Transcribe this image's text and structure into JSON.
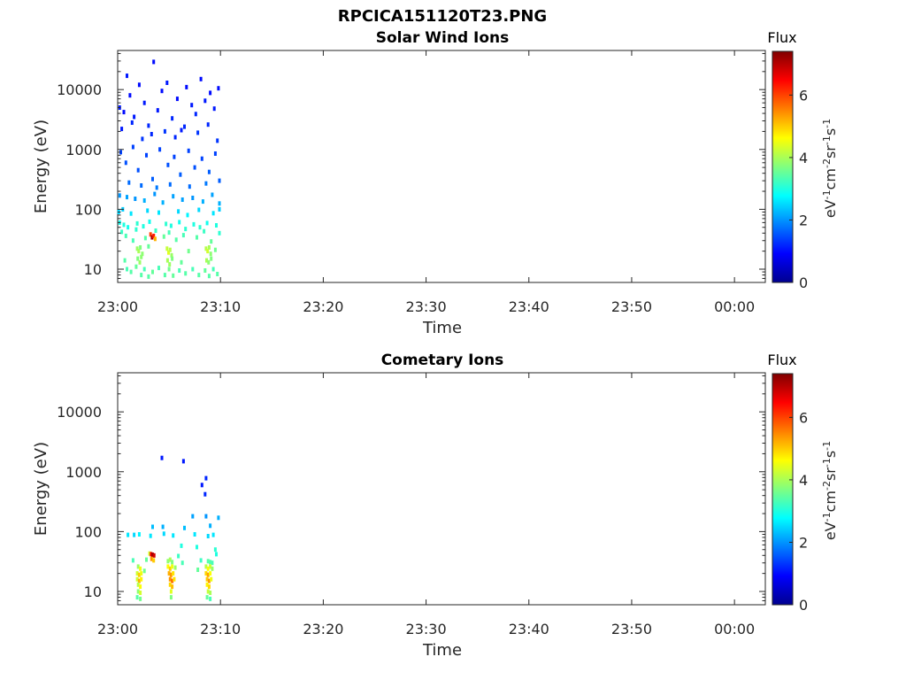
{
  "figure": {
    "title": "RPCICA151120T23.PNG"
  },
  "colormap": [
    "#00008f",
    "#0000ff",
    "#0080ff",
    "#00ffff",
    "#80ff80",
    "#ffff00",
    "#ff8000",
    "#ff0000",
    "#800000"
  ],
  "chart_data": [
    {
      "type": "heatmap",
      "title": "Solar Wind Ions",
      "xlabel": "Time",
      "ylabel": "Energy (eV)",
      "x_ticks": [
        "23:00",
        "23:10",
        "23:20",
        "23:30",
        "23:40",
        "23:50",
        "00:00"
      ],
      "x_range_minutes": [
        0,
        63
      ],
      "y_scale": "log",
      "y_ticks": [
        10,
        100,
        1000,
        10000
      ],
      "ylim": [
        6,
        45000
      ],
      "colorbar": {
        "label": "Flux",
        "units": "eV⁻¹cm⁻²sr⁻¹s⁻¹",
        "ticks": [
          0,
          2,
          4,
          6
        ],
        "range": [
          0,
          7.4
        ]
      },
      "points": [
        [
          0.2,
          5000,
          1.1
        ],
        [
          0.6,
          4200,
          1.0
        ],
        [
          0.9,
          17000,
          1.1
        ],
        [
          1.2,
          8000,
          1.0
        ],
        [
          1.6,
          3500,
          1.1
        ],
        [
          2.1,
          12000,
          1.0
        ],
        [
          2.6,
          6000,
          1.1
        ],
        [
          3.0,
          2500,
          1.2
        ],
        [
          3.5,
          29000,
          1.0
        ],
        [
          3.9,
          4500,
          1.1
        ],
        [
          4.3,
          9500,
          1.0
        ],
        [
          4.8,
          13000,
          1.1
        ],
        [
          5.3,
          3300,
          1.2
        ],
        [
          5.8,
          7000,
          1.0
        ],
        [
          6.2,
          2100,
          1.1
        ],
        [
          6.7,
          11000,
          1.0
        ],
        [
          7.2,
          5500,
          1.1
        ],
        [
          7.6,
          3900,
          1.2
        ],
        [
          8.1,
          15000,
          1.0
        ],
        [
          8.5,
          6500,
          1.1
        ],
        [
          9.0,
          8800,
          1.0
        ],
        [
          9.4,
          4800,
          1.1
        ],
        [
          9.8,
          10500,
          1.0
        ],
        [
          0.4,
          2200,
          1.1
        ],
        [
          1.4,
          2800,
          1.2
        ],
        [
          2.4,
          1500,
          1.3
        ],
        [
          3.3,
          1800,
          1.2
        ],
        [
          4.6,
          2000,
          1.3
        ],
        [
          5.6,
          1600,
          1.2
        ],
        [
          6.5,
          2400,
          1.2
        ],
        [
          7.8,
          1900,
          1.3
        ],
        [
          8.8,
          2600,
          1.2
        ],
        [
          9.7,
          1400,
          1.3
        ],
        [
          0.3,
          900,
          1.4
        ],
        [
          0.8,
          600,
          1.5
        ],
        [
          1.5,
          1100,
          1.4
        ],
        [
          2.0,
          450,
          1.5
        ],
        [
          2.8,
          800,
          1.4
        ],
        [
          3.4,
          320,
          1.6
        ],
        [
          4.1,
          1000,
          1.4
        ],
        [
          4.9,
          550,
          1.5
        ],
        [
          5.5,
          750,
          1.4
        ],
        [
          6.1,
          380,
          1.6
        ],
        [
          6.9,
          950,
          1.4
        ],
        [
          7.5,
          500,
          1.5
        ],
        [
          8.2,
          700,
          1.4
        ],
        [
          8.9,
          420,
          1.6
        ],
        [
          9.5,
          850,
          1.4
        ],
        [
          1.1,
          280,
          1.7
        ],
        [
          2.3,
          250,
          1.7
        ],
        [
          3.8,
          230,
          1.8
        ],
        [
          5.1,
          260,
          1.7
        ],
        [
          7.0,
          240,
          1.7
        ],
        [
          8.6,
          270,
          1.8
        ],
        [
          9.9,
          300,
          1.6
        ],
        [
          0.2,
          170,
          2.0
        ],
        [
          0.9,
          160,
          2.1
        ],
        [
          1.7,
          150,
          2.0
        ],
        [
          2.6,
          140,
          2.2
        ],
        [
          3.6,
          180,
          2.0
        ],
        [
          4.4,
          130,
          2.2
        ],
        [
          5.4,
          165,
          2.1
        ],
        [
          6.3,
          145,
          2.1
        ],
        [
          7.3,
          155,
          2.0
        ],
        [
          8.3,
          135,
          2.2
        ],
        [
          9.2,
          175,
          2.1
        ],
        [
          9.9,
          125,
          2.2
        ],
        [
          0.1,
          90,
          2.5
        ],
        [
          0.5,
          100,
          2.4
        ],
        [
          1.3,
          85,
          2.6
        ],
        [
          2.9,
          95,
          2.5
        ],
        [
          4.0,
          88,
          2.6
        ],
        [
          5.9,
          92,
          2.5
        ],
        [
          6.8,
          80,
          2.7
        ],
        [
          7.9,
          98,
          2.5
        ],
        [
          9.3,
          86,
          2.6
        ],
        [
          9.9,
          100,
          2.4
        ],
        [
          0.2,
          60,
          2.9
        ],
        [
          0.6,
          55,
          3.0
        ],
        [
          1.0,
          50,
          2.9
        ],
        [
          1.9,
          58,
          3.1
        ],
        [
          2.5,
          52,
          3.0
        ],
        [
          3.1,
          62,
          2.9
        ],
        [
          4.7,
          57,
          3.1
        ],
        [
          5.2,
          53,
          3.0
        ],
        [
          6.0,
          61,
          2.9
        ],
        [
          7.4,
          56,
          3.0
        ],
        [
          8.0,
          50,
          3.1
        ],
        [
          8.7,
          59,
          2.9
        ],
        [
          9.6,
          54,
          3.0
        ],
        [
          0.4,
          42,
          3.2
        ],
        [
          1.8,
          46,
          3.1
        ],
        [
          3.7,
          44,
          3.2
        ],
        [
          5.0,
          41,
          3.3
        ],
        [
          6.6,
          47,
          3.1
        ],
        [
          8.4,
          43,
          3.2
        ],
        [
          9.9,
          40,
          3.1
        ],
        [
          0.8,
          36,
          3.3
        ],
        [
          1.5,
          30,
          3.3
        ],
        [
          2.7,
          33,
          3.4
        ],
        [
          3.2,
          38,
          6.0
        ],
        [
          3.35,
          34,
          7.1
        ],
        [
          3.5,
          36,
          6.3
        ],
        [
          3.65,
          32,
          5.2
        ],
        [
          4.5,
          35,
          3.5
        ],
        [
          5.7,
          31,
          3.4
        ],
        [
          6.4,
          37,
          3.3
        ],
        [
          7.7,
          34,
          3.4
        ],
        [
          9.1,
          29,
          3.5
        ],
        [
          1.9,
          22,
          3.9
        ],
        [
          2.05,
          20,
          4.0
        ],
        [
          2.2,
          23,
          3.7
        ],
        [
          2.4,
          18,
          3.8
        ],
        [
          4.8,
          22,
          4.2
        ],
        [
          4.95,
          19,
          4.4
        ],
        [
          5.1,
          21,
          4.1
        ],
        [
          5.25,
          17,
          3.9
        ],
        [
          8.6,
          22,
          4.1
        ],
        [
          8.75,
          20,
          4.3
        ],
        [
          8.9,
          23,
          4.0
        ],
        [
          9.05,
          18,
          3.8
        ],
        [
          3.0,
          24,
          3.5
        ],
        [
          6.9,
          20,
          3.6
        ],
        [
          9.5,
          21,
          3.6
        ],
        [
          1.95,
          15,
          3.7
        ],
        [
          2.15,
          13,
          3.9
        ],
        [
          2.3,
          16,
          3.8
        ],
        [
          4.85,
          14,
          4.0
        ],
        [
          5.05,
          12,
          3.9
        ],
        [
          5.3,
          15,
          3.7
        ],
        [
          8.65,
          14,
          4.0
        ],
        [
          8.85,
          13,
          3.8
        ],
        [
          9.1,
          15,
          3.7
        ],
        [
          0.7,
          14,
          3.4
        ],
        [
          6.2,
          13,
          3.5
        ],
        [
          0.9,
          10,
          3.3
        ],
        [
          1.3,
          9,
          3.4
        ],
        [
          1.8,
          11,
          3.5
        ],
        [
          2.3,
          8,
          3.4
        ],
        [
          2.6,
          10,
          3.3
        ],
        [
          3.0,
          7.5,
          3.4
        ],
        [
          3.4,
          9,
          3.5
        ],
        [
          4.0,
          10.5,
          3.3
        ],
        [
          4.6,
          8,
          3.4
        ],
        [
          5.0,
          10,
          3.6
        ],
        [
          5.4,
          7.8,
          3.5
        ],
        [
          6.0,
          9.5,
          3.3
        ],
        [
          6.6,
          8.5,
          3.4
        ],
        [
          7.3,
          10,
          3.3
        ],
        [
          7.9,
          8,
          3.4
        ],
        [
          8.5,
          9.5,
          3.5
        ],
        [
          8.9,
          7.7,
          3.4
        ],
        [
          9.3,
          10,
          3.3
        ],
        [
          9.7,
          8.3,
          3.4
        ]
      ]
    },
    {
      "type": "heatmap",
      "title": "Cometary Ions",
      "xlabel": "Time",
      "ylabel": "Energy (eV)",
      "x_ticks": [
        "23:00",
        "23:10",
        "23:20",
        "23:30",
        "23:40",
        "23:50",
        "00:00"
      ],
      "x_range_minutes": [
        0,
        63
      ],
      "y_scale": "log",
      "y_ticks": [
        10,
        100,
        1000,
        10000
      ],
      "ylim": [
        6,
        45000
      ],
      "colorbar": {
        "label": "Flux",
        "units": "eV⁻¹cm⁻²sr⁻¹s⁻¹",
        "ticks": [
          0,
          2,
          4,
          6
        ],
        "range": [
          0,
          7.4
        ]
      },
      "points": [
        [
          4.3,
          1700,
          1.1
        ],
        [
          6.4,
          1500,
          1.1
        ],
        [
          8.6,
          780,
          1.2
        ],
        [
          8.5,
          420,
          1.2
        ],
        [
          8.2,
          600,
          1.1
        ],
        [
          7.3,
          180,
          2.1
        ],
        [
          8.6,
          180,
          2.0
        ],
        [
          9.8,
          170,
          2.2
        ],
        [
          3.4,
          120,
          2.3
        ],
        [
          4.4,
          120,
          2.2
        ],
        [
          6.5,
          115,
          2.3
        ],
        [
          9.0,
          125,
          2.2
        ],
        [
          1.0,
          88,
          2.6
        ],
        [
          1.6,
          88,
          2.5
        ],
        [
          2.1,
          90,
          2.7
        ],
        [
          3.2,
          85,
          2.6
        ],
        [
          4.5,
          92,
          2.5
        ],
        [
          5.4,
          86,
          2.6
        ],
        [
          7.5,
          90,
          2.6
        ],
        [
          8.8,
          84,
          2.5
        ],
        [
          9.3,
          88,
          2.6
        ],
        [
          6.2,
          58,
          3.0
        ],
        [
          7.7,
          55,
          3.0
        ],
        [
          9.5,
          50,
          3.1
        ],
        [
          3.1,
          43,
          4.3
        ],
        [
          3.25,
          42,
          6.5
        ],
        [
          3.4,
          41,
          7.2
        ],
        [
          3.55,
          40,
          6.8
        ],
        [
          9.6,
          42,
          3.0
        ],
        [
          5.9,
          39,
          3.2
        ],
        [
          1.5,
          33,
          3.3
        ],
        [
          2.8,
          34,
          3.5
        ],
        [
          3.3,
          35,
          5.4
        ],
        [
          3.5,
          33,
          5.0
        ],
        [
          4.9,
          32,
          3.8
        ],
        [
          5.1,
          34,
          4.0
        ],
        [
          5.3,
          31,
          3.7
        ],
        [
          6.3,
          30,
          3.3
        ],
        [
          8.1,
          33,
          3.2
        ],
        [
          8.8,
          32,
          3.4
        ],
        [
          9.0,
          31,
          3.4
        ],
        [
          9.2,
          30,
          3.3
        ],
        [
          2.0,
          26,
          3.9
        ],
        [
          2.2,
          24,
          4.5
        ],
        [
          4.9,
          26,
          4.6
        ],
        [
          5.1,
          24,
          5.0
        ],
        [
          5.3,
          26,
          4.5
        ],
        [
          5.6,
          25,
          3.9
        ],
        [
          8.6,
          26,
          4.1
        ],
        [
          8.8,
          24,
          4.6
        ],
        [
          9.0,
          26,
          4.3
        ],
        [
          9.2,
          24,
          3.9
        ],
        [
          2.6,
          22,
          3.6
        ],
        [
          7.8,
          23,
          3.5
        ],
        [
          1.9,
          20,
          4.3
        ],
        [
          2.1,
          19,
          5.0
        ],
        [
          2.3,
          20,
          4.5
        ],
        [
          5.0,
          20,
          5.2
        ],
        [
          5.2,
          19,
          5.4
        ],
        [
          5.4,
          20,
          4.8
        ],
        [
          8.6,
          20,
          4.9
        ],
        [
          8.8,
          19,
          5.3
        ],
        [
          9.0,
          20,
          4.6
        ],
        [
          1.9,
          16,
          4.3
        ],
        [
          2.1,
          15,
          5.2
        ],
        [
          2.3,
          16,
          4.7
        ],
        [
          5.1,
          16,
          5.4
        ],
        [
          5.3,
          15,
          5.7
        ],
        [
          5.5,
          16,
          4.8
        ],
        [
          8.7,
          16,
          5.0
        ],
        [
          8.9,
          15,
          5.4
        ],
        [
          9.1,
          16,
          4.5
        ],
        [
          2.0,
          13,
          4.1
        ],
        [
          2.2,
          12,
          4.6
        ],
        [
          5.1,
          13,
          4.9
        ],
        [
          5.3,
          12,
          5.1
        ],
        [
          8.7,
          13,
          4.7
        ],
        [
          8.9,
          12,
          4.9
        ],
        [
          2.0,
          10,
          3.8
        ],
        [
          2.2,
          9.5,
          4.3
        ],
        [
          5.2,
          10,
          4.4
        ],
        [
          8.8,
          10,
          4.2
        ],
        [
          9.0,
          9.5,
          4.0
        ],
        [
          1.9,
          8,
          3.4
        ],
        [
          2.2,
          7.5,
          3.6
        ],
        [
          5.2,
          8,
          3.7
        ],
        [
          8.7,
          8,
          3.5
        ],
        [
          9.0,
          7.5,
          3.3
        ]
      ]
    }
  ]
}
